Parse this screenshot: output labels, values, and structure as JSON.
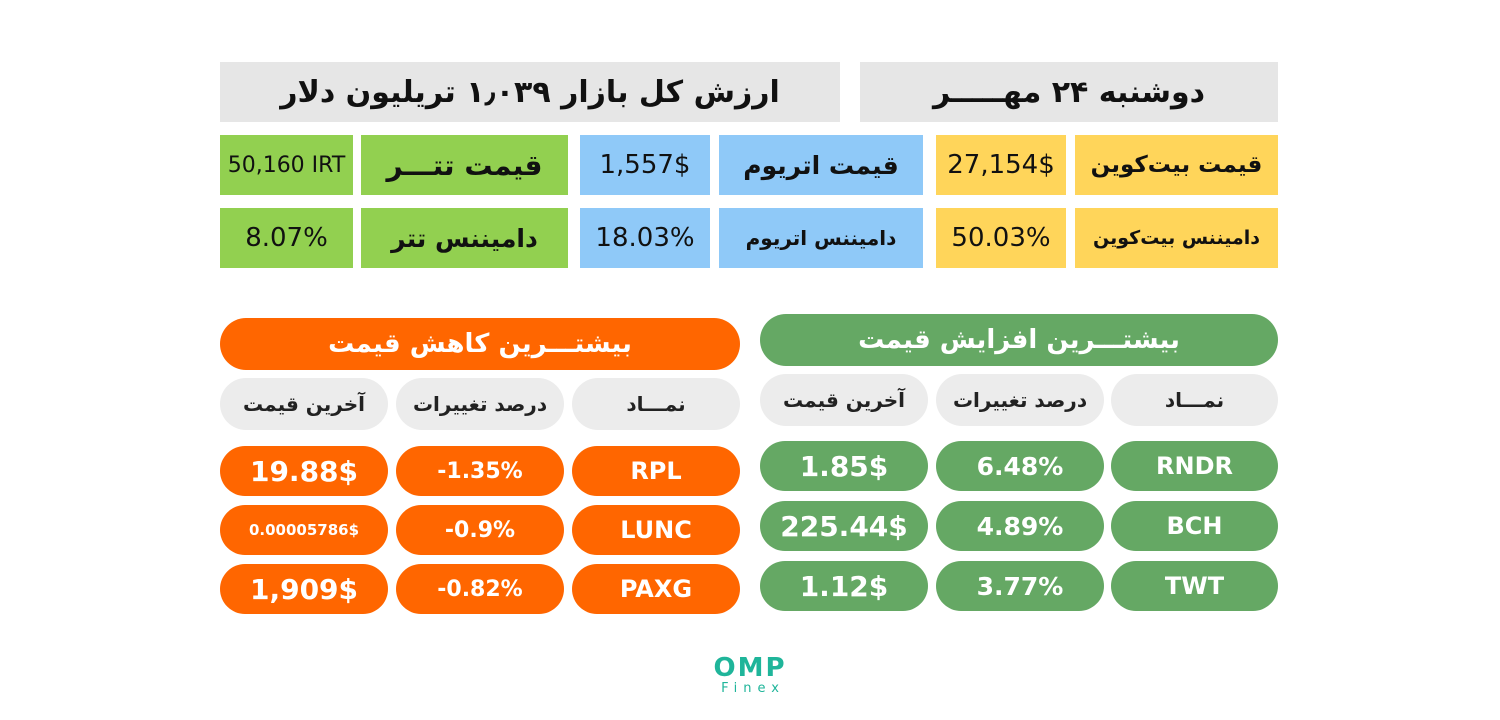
{
  "header": {
    "market_cap": "ارزش کل بازار ۱٫۰۳۹ تریلیون دلار",
    "date": "دوشنبه ۲۴ مهـــــر"
  },
  "stats": {
    "bitcoin_price_label": "قیمت بیت‌کوین",
    "bitcoin_price_value": "27,154$",
    "ethereum_price_label": "قیمت اتریوم",
    "ethereum_price_value": "1,557$",
    "tether_price_label": "قیمت تتـــر",
    "tether_price_value": "50,160 IRT",
    "bitcoin_dominance_label": "دامیننس بیت‌کوین",
    "bitcoin_dominance_value": "50.03%",
    "ethereum_dominance_label": "دامیننس اتریوم",
    "ethereum_dominance_value": "18.03%",
    "tether_dominance_label": "دامیننس تتر",
    "tether_dominance_value": "8.07%"
  },
  "losers": {
    "title": "بیشتـــرین کاهش قیمت",
    "col_symbol": "نمـــاد",
    "col_change": "درصد تغییرات",
    "col_price": "آخرین قیمت",
    "rows": [
      {
        "symbol": "RPL",
        "change": "-1.35%",
        "price": "19.88$"
      },
      {
        "symbol": "LUNC",
        "change": "-0.9%",
        "price": "0.00005786$"
      },
      {
        "symbol": "PAXG",
        "change": "-0.82%",
        "price": "1,909$"
      }
    ]
  },
  "gainers": {
    "title": "بیشتـــرین افزایش قیمت",
    "col_symbol": "نمـــاد",
    "col_change": "درصد تغییرات",
    "col_price": "آخرین قیمت",
    "rows": [
      {
        "symbol": "RNDR",
        "change": "6.48%",
        "price": "1.85$"
      },
      {
        "symbol": "BCH",
        "change": "4.89%",
        "price": "225.44$"
      },
      {
        "symbol": "TWT",
        "change": "3.77%",
        "price": "1.12$"
      }
    ]
  },
  "logo": {
    "main": "OMP",
    "sub": "Finex"
  },
  "colors": {
    "banner": "#e6e6e6",
    "bitcoin": "#ffd55a",
    "ethereum": "#8fc9f8",
    "tether": "#92d050",
    "losers": "#ff6600",
    "gainers": "#65a864",
    "logo": "#1fb59a"
  }
}
